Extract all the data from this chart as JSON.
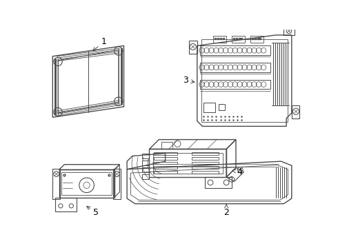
{
  "bg_color": "#ffffff",
  "line_color": "#4a4a4a",
  "label_color": "#000000",
  "figsize": [
    4.9,
    3.6
  ],
  "dpi": 100
}
